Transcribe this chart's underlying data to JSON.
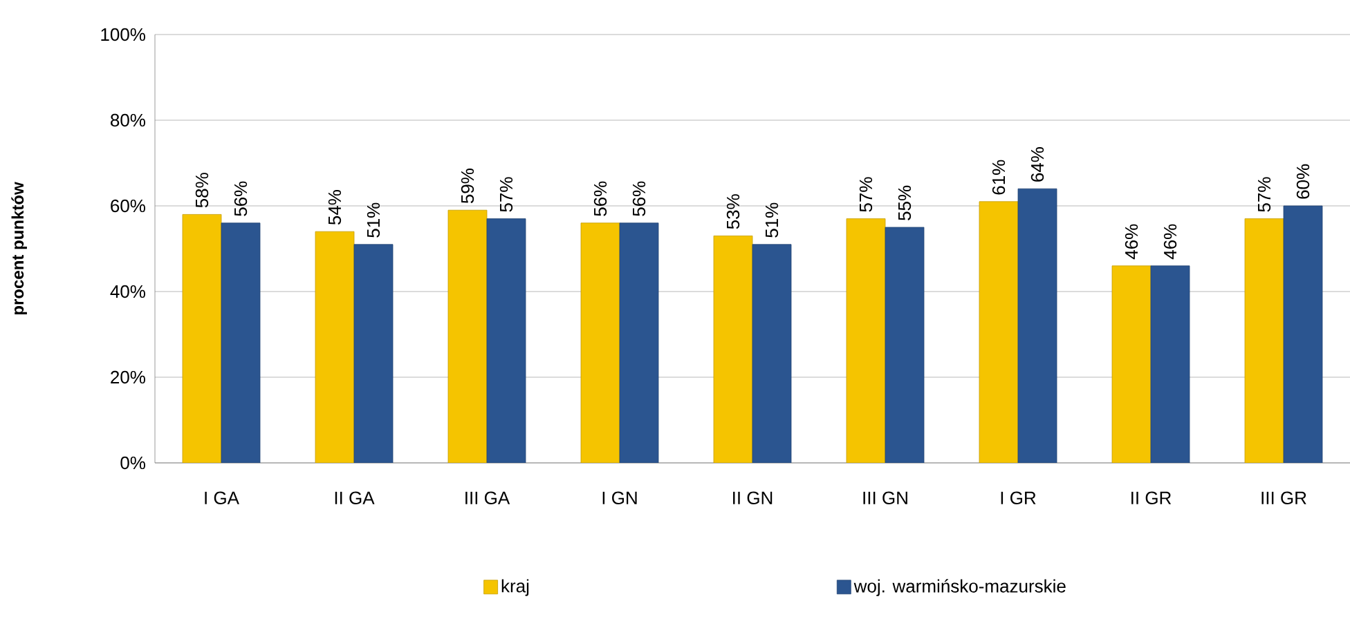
{
  "chart_data": {
    "type": "bar",
    "ylabel": "procent punktów",
    "categories": [
      "I GA",
      "II GA",
      "III GA",
      "I GN",
      "II GN",
      "III GN",
      "I GR",
      "II GR",
      "III GR"
    ],
    "series": [
      {
        "name": "kraj",
        "color": "#f5c400",
        "values": [
          58,
          54,
          59,
          56,
          53,
          57,
          61,
          46,
          57
        ],
        "value_labels": [
          "58%",
          "54%",
          "59%",
          "56%",
          "53%",
          "57%",
          "61%",
          "46%",
          "57%"
        ]
      },
      {
        "name": "woj. warmińsko-mazurskie",
        "color": "#2b5590",
        "values": [
          56,
          51,
          57,
          56,
          51,
          55,
          64,
          46,
          60
        ],
        "value_labels": [
          "56%",
          "51%",
          "57%",
          "56%",
          "51%",
          "55%",
          "64%",
          "46%",
          "60%"
        ]
      }
    ],
    "ylim": [
      0,
      100
    ],
    "yticks": [
      {
        "value": 0,
        "label": "0%"
      },
      {
        "value": 20,
        "label": "20%"
      },
      {
        "value": 40,
        "label": "40%"
      },
      {
        "value": 60,
        "label": "60%"
      },
      {
        "value": 80,
        "label": "80%"
      },
      {
        "value": 100,
        "label": "100%"
      }
    ],
    "grid": "y",
    "legend": "bottom"
  }
}
